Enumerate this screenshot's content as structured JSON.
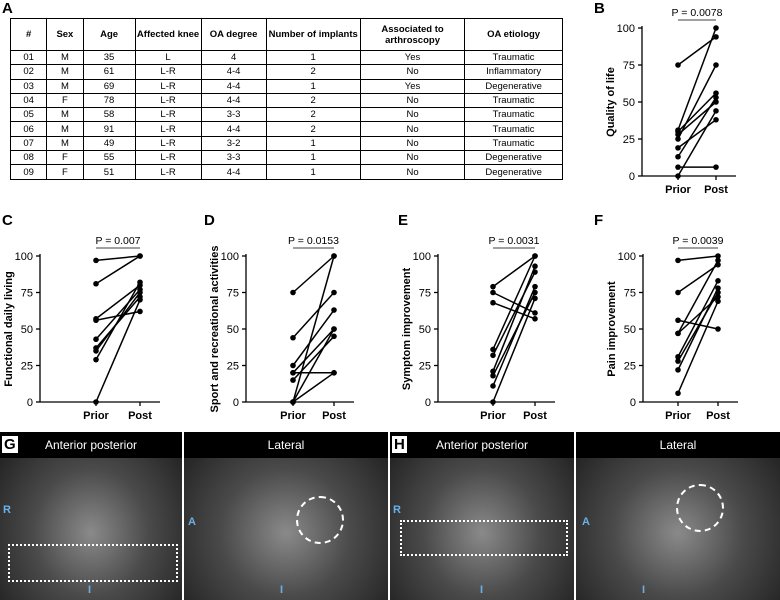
{
  "panels": [
    "A",
    "B",
    "C",
    "D",
    "E",
    "F",
    "G",
    "H"
  ],
  "table": {
    "header": [
      "#",
      "Sex",
      "Age",
      "Affected knee",
      "OA degree",
      "Number of implants",
      "Associated to arthroscopy",
      "OA etiology"
    ],
    "rows": [
      [
        "01",
        "M",
        "35",
        "L",
        "4",
        "1",
        "Yes",
        "Traumatic"
      ],
      [
        "02",
        "M",
        "61",
        "L-R",
        "4-4",
        "2",
        "No",
        "Inflammatory"
      ],
      [
        "03",
        "M",
        "69",
        "L-R",
        "4-4",
        "1",
        "Yes",
        "Degenerative"
      ],
      [
        "04",
        "F",
        "78",
        "L-R",
        "4-4",
        "2",
        "No",
        "Traumatic"
      ],
      [
        "05",
        "M",
        "58",
        "L-R",
        "3-3",
        "2",
        "No",
        "Traumatic"
      ],
      [
        "06",
        "M",
        "91",
        "L-R",
        "4-4",
        "2",
        "No",
        "Traumatic"
      ],
      [
        "07",
        "M",
        "49",
        "L-R",
        "3-2",
        "1",
        "No",
        "Traumatic"
      ],
      [
        "08",
        "F",
        "55",
        "L-R",
        "3-3",
        "1",
        "No",
        "Degenerative"
      ],
      [
        "09",
        "F",
        "51",
        "L-R",
        "4-4",
        "1",
        "No",
        "Degenerative"
      ]
    ]
  },
  "chart_data": [
    {
      "type": "paired",
      "y_label": "Quality of life",
      "annotation": "P = 0.0078",
      "categories": [
        "Prior",
        "Post"
      ],
      "color": "#000000",
      "ylim": [
        0,
        100
      ],
      "yticks": [
        0,
        25,
        50,
        75,
        100
      ],
      "series": [
        {
          "values": [
            75,
            94
          ]
        },
        {
          "values": [
            31,
            100
          ]
        },
        {
          "values": [
            30,
            56
          ]
        },
        {
          "values": [
            28,
            50
          ]
        },
        {
          "values": [
            25,
            75
          ]
        },
        {
          "values": [
            19,
            38
          ]
        },
        {
          "values": [
            13,
            53
          ]
        },
        {
          "values": [
            6,
            6
          ]
        },
        {
          "values": [
            0,
            44
          ]
        }
      ]
    },
    {
      "type": "paired",
      "y_label": "Functional daily living",
      "annotation": "P = 0.007",
      "categories": [
        "Prior",
        "Post"
      ],
      "color": "#000000",
      "ylim": [
        0,
        100
      ],
      "yticks": [
        0,
        25,
        50,
        75,
        100
      ],
      "series": [
        {
          "values": [
            97,
            100
          ]
        },
        {
          "values": [
            81,
            100
          ]
        },
        {
          "values": [
            57,
            80
          ]
        },
        {
          "values": [
            56,
            62
          ]
        },
        {
          "values": [
            43,
            77
          ]
        },
        {
          "values": [
            37,
            72
          ]
        },
        {
          "values": [
            35,
            75
          ]
        },
        {
          "values": [
            29,
            82
          ]
        },
        {
          "values": [
            0,
            70
          ]
        }
      ]
    },
    {
      "type": "paired",
      "y_label": "Sport and recreational activities",
      "annotation": "P = 0.0153",
      "categories": [
        "Prior",
        "Post"
      ],
      "color": "#000000",
      "ylim": [
        0,
        100
      ],
      "yticks": [
        0,
        25,
        50,
        75,
        100
      ],
      "series": [
        {
          "values": [
            75,
            100
          ]
        },
        {
          "values": [
            44,
            75
          ]
        },
        {
          "values": [
            25,
            63
          ]
        },
        {
          "values": [
            20,
            50
          ]
        },
        {
          "values": [
            20,
            20
          ]
        },
        {
          "values": [
            15,
            45
          ]
        },
        {
          "values": [
            0,
            100
          ]
        },
        {
          "values": [
            0,
            20
          ]
        },
        {
          "values": [
            0,
            50
          ]
        }
      ]
    },
    {
      "type": "paired",
      "y_label": "Symptom improvement",
      "annotation": "P = 0.0031",
      "categories": [
        "Prior",
        "Post"
      ],
      "color": "#000000",
      "ylim": [
        0,
        100
      ],
      "yticks": [
        0,
        25,
        50,
        75,
        100
      ],
      "series": [
        {
          "values": [
            79,
            100
          ]
        },
        {
          "values": [
            75,
            61
          ]
        },
        {
          "values": [
            68,
            57
          ]
        },
        {
          "values": [
            36,
            100
          ]
        },
        {
          "values": [
            32,
            89
          ]
        },
        {
          "values": [
            21,
            93
          ]
        },
        {
          "values": [
            18,
            75
          ]
        },
        {
          "values": [
            11,
            79
          ]
        },
        {
          "values": [
            0,
            71
          ]
        }
      ]
    },
    {
      "type": "paired",
      "y_label": "Pain improvement",
      "annotation": "P = 0.0039",
      "categories": [
        "Prior",
        "Post"
      ],
      "color": "#000000",
      "ylim": [
        0,
        100
      ],
      "yticks": [
        0,
        25,
        50,
        75,
        100
      ],
      "series": [
        {
          "values": [
            97,
            100
          ]
        },
        {
          "values": [
            75,
            94
          ]
        },
        {
          "values": [
            56,
            50
          ]
        },
        {
          "values": [
            47,
            97
          ]
        },
        {
          "values": [
            31,
            83
          ]
        },
        {
          "values": [
            28,
            75
          ]
        },
        {
          "values": [
            22,
            78
          ]
        },
        {
          "values": [
            6,
            69
          ]
        },
        {
          "values": [
            47,
            72
          ]
        }
      ]
    }
  ],
  "images": [
    {
      "title": "Anterior posterior",
      "labels": [
        "R",
        "I"
      ]
    },
    {
      "title": "Lateral",
      "labels": [
        "A",
        "I"
      ]
    },
    {
      "title": "Anterior posterior",
      "labels": [
        "R",
        "I"
      ]
    },
    {
      "title": "Lateral",
      "labels": [
        "A",
        "I"
      ]
    }
  ]
}
